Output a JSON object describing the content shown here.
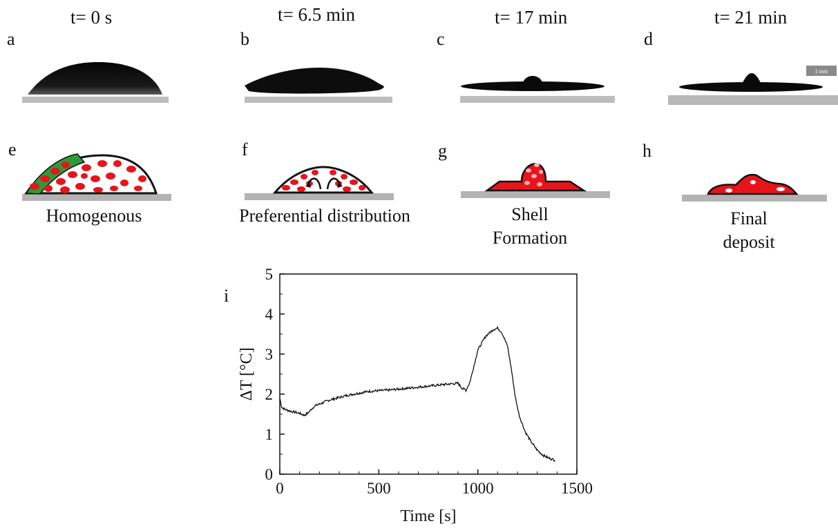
{
  "panels": [
    {
      "letter": "a",
      "time": "t= 0 s"
    },
    {
      "letter": "b",
      "time": "t= 6.5 min"
    },
    {
      "letter": "c",
      "time": "t= 17 min"
    },
    {
      "letter": "d",
      "time": "t= 21 min"
    }
  ],
  "schematics": [
    {
      "letter": "e",
      "caption": "Homogenous"
    },
    {
      "letter": "f",
      "caption": "Preferential distribution"
    },
    {
      "letter": "g",
      "caption": "Shell Formation"
    },
    {
      "letter": "h",
      "caption": "Final deposit"
    }
  ],
  "scale_bar": "1 mm",
  "colors": {
    "particle": "#e8141c",
    "shell": "#2e9a3a",
    "substrate": "#b3b3b3",
    "drop": "#0a0a0a"
  },
  "chart_data": {
    "type": "line",
    "panel_label": "i",
    "xlabel": "Time [s]",
    "ylabel": "ΔT [°C]",
    "xlim": [
      0,
      1500
    ],
    "ylim": [
      0,
      5
    ],
    "xticks": [
      "0",
      "500",
      "1000",
      "1500"
    ],
    "yticks": [
      "0",
      "1",
      "2",
      "3",
      "4",
      "5"
    ],
    "series": [
      {
        "x": [
          0,
          10,
          25,
          50,
          75,
          100,
          125,
          140,
          175,
          250,
          350,
          450,
          550,
          650,
          750,
          850,
          900,
          920,
          940,
          960,
          980,
          1000,
          1040,
          1080,
          1100,
          1120,
          1150,
          1170,
          1190,
          1210,
          1240,
          1270,
          1300,
          1330,
          1360,
          1390
        ],
        "y": [
          1.9,
          1.67,
          1.62,
          1.58,
          1.55,
          1.52,
          1.47,
          1.52,
          1.7,
          1.85,
          1.98,
          2.07,
          2.1,
          2.15,
          2.2,
          2.25,
          2.27,
          2.15,
          2.1,
          2.3,
          2.7,
          3.1,
          3.45,
          3.62,
          3.65,
          3.55,
          3.2,
          2.6,
          1.9,
          1.45,
          1.05,
          0.8,
          0.6,
          0.47,
          0.4,
          0.35
        ]
      }
    ]
  }
}
